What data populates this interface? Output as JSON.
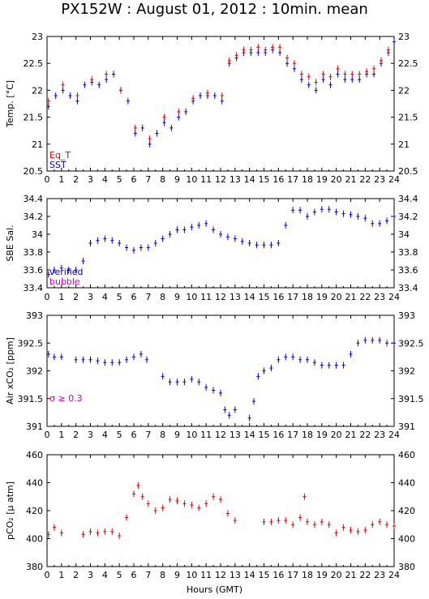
{
  "title": "PX152W : August 01, 2012 : 10min. mean",
  "xlabel": "Hours (GMT)",
  "chart_data": [
    {
      "type": "scatter",
      "panel": "temperature",
      "ylabel": "Temp. [°C]",
      "ylim": [
        20.5,
        23
      ],
      "yticks": [
        "20.5",
        "21",
        "21.5",
        "22",
        "22.5",
        "23"
      ],
      "xlim": [
        0,
        24
      ],
      "xticks": [
        "0",
        "1",
        "2",
        "3",
        "4",
        "5",
        "6",
        "7",
        "8",
        "9",
        "10",
        "11",
        "12",
        "13",
        "14",
        "15",
        "16",
        "17",
        "18",
        "19",
        "20",
        "21",
        "22",
        "23",
        "24"
      ],
      "legend": [
        {
          "label": "Eq_T",
          "color": "#dd0000"
        },
        {
          "label": "SST",
          "color": "#0000cc"
        }
      ],
      "series": [
        {
          "name": "SST",
          "color": "#0000cc",
          "x": [
            0.1,
            0.6,
            1.1,
            1.6,
            2.1,
            2.6,
            3.1,
            3.6,
            4.1,
            4.6,
            5.1,
            5.6,
            6.1,
            6.6,
            7.1,
            7.6,
            8.1,
            8.6,
            9.1,
            9.6,
            10.1,
            10.6,
            11.1,
            11.6,
            12.1,
            12.6,
            13.1,
            13.6,
            14.1,
            14.6,
            15.1,
            15.6,
            16.1,
            16.6,
            17.1,
            17.6,
            18.1,
            18.6,
            19.1,
            19.6,
            20.1,
            20.6,
            21.1,
            21.6,
            22.1,
            22.6,
            23.1,
            23.6,
            24.0
          ],
          "y": [
            21.7,
            21.9,
            22.0,
            21.9,
            21.8,
            22.1,
            22.15,
            22.1,
            22.2,
            22.3,
            22.0,
            21.8,
            21.2,
            21.3,
            21.0,
            21.2,
            21.4,
            21.3,
            21.5,
            21.6,
            21.8,
            21.9,
            21.9,
            21.9,
            21.8,
            22.5,
            22.6,
            22.7,
            22.7,
            22.7,
            22.7,
            22.75,
            22.7,
            22.5,
            22.4,
            22.2,
            22.1,
            22.0,
            22.2,
            22.1,
            22.3,
            22.2,
            22.2,
            22.2,
            22.3,
            22.3,
            22.5,
            22.7,
            22.9
          ]
        },
        {
          "name": "Eq_T",
          "color": "#dd0000",
          "x": [
            0.1,
            1.1,
            2.1,
            3.1,
            4.1,
            5.1,
            6.1,
            7.1,
            8.1,
            9.1,
            10.1,
            11.1,
            12.1,
            12.6,
            13.1,
            13.6,
            14.1,
            14.6,
            15.1,
            15.6,
            16.1,
            16.6,
            17.1,
            17.6,
            18.1,
            18.6,
            19.1,
            19.6,
            20.1,
            20.6,
            21.1,
            21.6,
            22.1,
            22.6,
            23.1,
            23.6
          ],
          "y": [
            21.8,
            22.1,
            21.9,
            22.2,
            22.3,
            22.0,
            21.3,
            21.1,
            21.5,
            21.6,
            21.85,
            21.95,
            21.9,
            22.55,
            22.65,
            22.75,
            22.75,
            22.8,
            22.75,
            22.8,
            22.8,
            22.6,
            22.5,
            22.3,
            22.25,
            22.15,
            22.3,
            22.25,
            22.4,
            22.3,
            22.3,
            22.3,
            22.35,
            22.4,
            22.55,
            22.75
          ]
        }
      ]
    },
    {
      "type": "scatter",
      "panel": "salinity",
      "ylabel": "SBE Sal.",
      "ylim": [
        33.4,
        34.4
      ],
      "yticks": [
        "33.4",
        "33.6",
        "33.8",
        "34",
        "34.2",
        "34.4"
      ],
      "xlim": [
        0,
        24
      ],
      "xticks": [
        "0",
        "1",
        "2",
        "3",
        "4",
        "5",
        "6",
        "7",
        "8",
        "9",
        "10",
        "11",
        "12",
        "13",
        "14",
        "15",
        "16",
        "17",
        "18",
        "19",
        "20",
        "21",
        "22",
        "23",
        "24"
      ],
      "legend": [
        {
          "label": "verified",
          "color": "#0000cc"
        },
        {
          "label": "bubble",
          "color": "#cc00cc"
        }
      ],
      "series": [
        {
          "name": "verified",
          "color": "#0000cc",
          "x": [
            0.1,
            0.5,
            1.0,
            1.5,
            2.0,
            2.5,
            3.0,
            3.5,
            4.0,
            4.5,
            5.0,
            5.5,
            6.0,
            6.5,
            7.0,
            7.5,
            8.0,
            8.5,
            9.0,
            9.5,
            10.0,
            10.5,
            11.0,
            11.5,
            12.0,
            12.5,
            13.0,
            13.5,
            14.0,
            14.5,
            15.0,
            15.5,
            16.0,
            16.5,
            17.0,
            17.5,
            18.0,
            18.5,
            19.0,
            19.5,
            20.0,
            20.5,
            21.0,
            21.5,
            22.0,
            22.5,
            23.0,
            23.5,
            24.0
          ],
          "y": [
            33.55,
            33.6,
            33.62,
            33.6,
            33.6,
            33.7,
            33.9,
            33.93,
            33.95,
            33.93,
            33.9,
            33.85,
            33.82,
            33.85,
            33.85,
            33.9,
            33.95,
            34.0,
            34.05,
            34.05,
            34.08,
            34.1,
            34.12,
            34.05,
            34.0,
            33.97,
            33.95,
            33.92,
            33.9,
            33.88,
            33.88,
            33.88,
            33.9,
            34.1,
            34.27,
            34.27,
            34.2,
            34.25,
            34.28,
            34.28,
            34.25,
            34.23,
            34.22,
            34.2,
            34.18,
            34.12,
            34.12,
            34.15,
            34.2
          ]
        }
      ]
    },
    {
      "type": "scatter",
      "panel": "air_xco2",
      "ylabel": "Air xCO₂ [ppm]",
      "ylim": [
        391,
        393
      ],
      "yticks": [
        "391",
        "391.5",
        "392",
        "392.5",
        "393"
      ],
      "xlim": [
        0,
        24
      ],
      "xticks": [
        "0",
        "1",
        "2",
        "3",
        "4",
        "5",
        "6",
        "7",
        "8",
        "9",
        "10",
        "11",
        "12",
        "13",
        "14",
        "15",
        "16",
        "17",
        "18",
        "19",
        "20",
        "21",
        "22",
        "23",
        "24"
      ],
      "annotation": "σ ≥ 0.3",
      "series": [
        {
          "name": "Air xCO2",
          "color": "#0000cc",
          "x": [
            0.1,
            0.5,
            1.0,
            2.0,
            2.5,
            3.0,
            3.5,
            4.0,
            4.5,
            5.0,
            5.5,
            6.0,
            6.5,
            6.9,
            8.0,
            8.5,
            9.0,
            9.5,
            10.0,
            10.5,
            11.0,
            11.5,
            12.0,
            12.3,
            12.6,
            13.0,
            14.0,
            14.3,
            14.6,
            15.0,
            15.5,
            16.0,
            16.5,
            17.0,
            17.5,
            18.0,
            18.5,
            19.0,
            19.5,
            20.0,
            20.5,
            21.0,
            21.5,
            22.0,
            22.5,
            23.0,
            23.5,
            24.0
          ],
          "y": [
            392.3,
            392.25,
            392.25,
            392.2,
            392.2,
            392.2,
            392.18,
            392.15,
            392.15,
            392.15,
            392.2,
            392.25,
            392.3,
            392.2,
            391.9,
            391.8,
            391.8,
            391.8,
            391.85,
            391.8,
            391.7,
            391.65,
            391.6,
            391.3,
            391.2,
            391.3,
            391.15,
            391.45,
            391.9,
            392.0,
            392.05,
            392.2,
            392.25,
            392.25,
            392.2,
            392.2,
            392.15,
            392.1,
            392.1,
            392.1,
            392.1,
            392.3,
            392.5,
            392.55,
            392.55,
            392.55,
            392.5,
            392.5
          ]
        }
      ]
    },
    {
      "type": "scatter",
      "panel": "pco2",
      "ylabel": "pCO₂ [μ atm]",
      "ylim": [
        380,
        460
      ],
      "yticks": [
        "380",
        "400",
        "420",
        "440",
        "460"
      ],
      "xlim": [
        0,
        24
      ],
      "xticks": [
        "0",
        "1",
        "2",
        "3",
        "4",
        "5",
        "6",
        "7",
        "8",
        "9",
        "10",
        "11",
        "12",
        "13",
        "14",
        "15",
        "16",
        "17",
        "18",
        "19",
        "20",
        "21",
        "22",
        "23",
        "24"
      ],
      "series": [
        {
          "name": "pCO2",
          "color": "#dd0000",
          "x": [
            0.1,
            0.5,
            1.0,
            2.5,
            3.0,
            3.5,
            4.0,
            4.5,
            5.0,
            5.5,
            6.0,
            6.3,
            6.6,
            7.0,
            7.5,
            8.0,
            8.5,
            9.0,
            9.5,
            10.0,
            10.5,
            11.0,
            11.5,
            12.0,
            12.5,
            13.0,
            15.0,
            15.5,
            16.0,
            16.5,
            17.0,
            17.5,
            17.8,
            18.0,
            18.5,
            19.0,
            19.5,
            20.0,
            20.5,
            21.0,
            21.5,
            22.0,
            22.5,
            23.0,
            23.5,
            24.0
          ],
          "y": [
            403,
            408,
            404,
            403,
            405,
            404,
            405,
            405,
            402,
            415,
            432,
            438,
            430,
            425,
            420,
            422,
            428,
            427,
            425,
            424,
            422,
            425,
            430,
            428,
            418,
            413,
            412,
            412,
            413,
            413,
            410,
            415,
            430,
            412,
            410,
            412,
            410,
            404,
            408,
            406,
            405,
            406,
            410,
            412,
            410,
            409
          ]
        }
      ]
    }
  ]
}
